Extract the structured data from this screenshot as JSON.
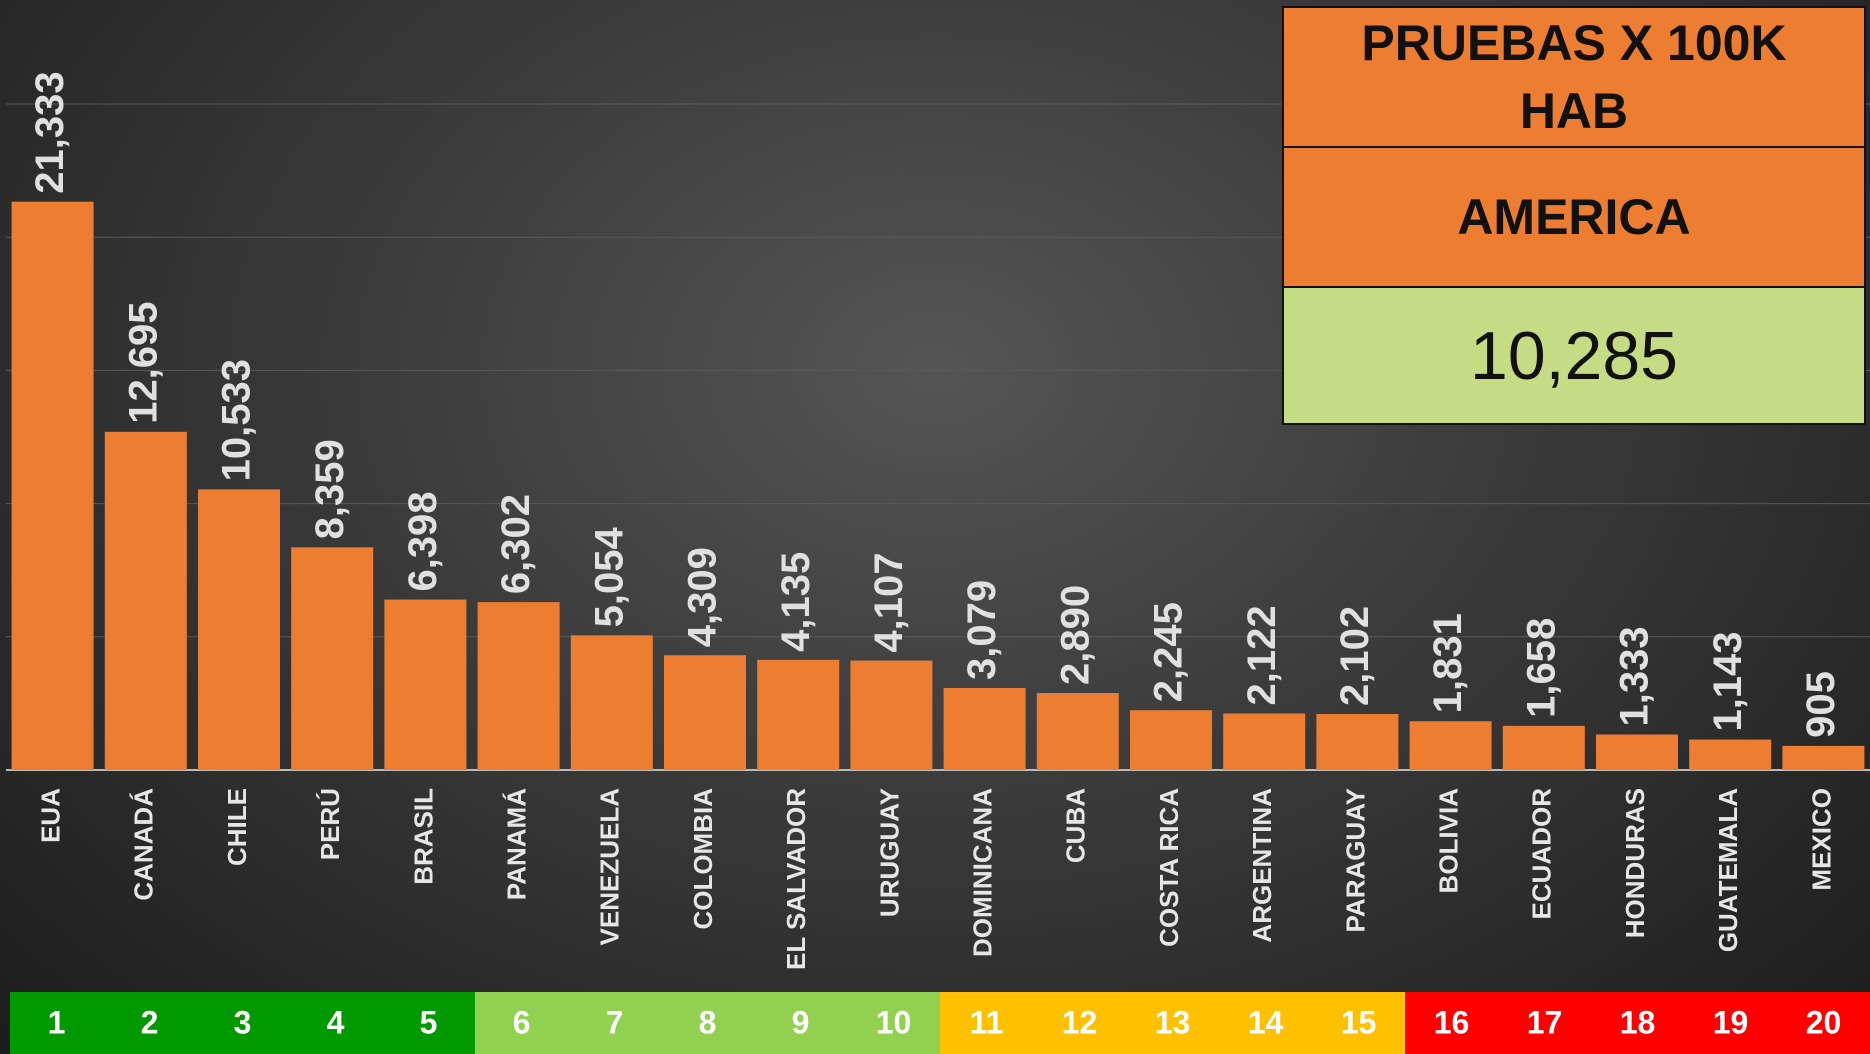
{
  "chart_data": {
    "type": "bar",
    "categories": [
      "EUA",
      "CANADÁ",
      "CHILE",
      "PERÚ",
      "BRASIL",
      "PANAMÁ",
      "VENEZUELA",
      "COLOMBIA",
      "EL SALVADOR",
      "URUGUAY",
      "DOMINICANA",
      "CUBA",
      "COSTA RICA",
      "ARGENTINA",
      "PARAGUAY",
      "BOLIVIA",
      "ECUADOR",
      "HONDURAS",
      "GUATEMALA",
      "MEXICO"
    ],
    "values": [
      21333,
      12695,
      10533,
      8359,
      6398,
      6302,
      5054,
      4309,
      4135,
      4107,
      3079,
      2890,
      2245,
      2122,
      2102,
      1831,
      1658,
      1333,
      1143,
      905
    ],
    "value_labels": [
      "21,333",
      "12,695",
      "10,533",
      "8,359",
      "6,398",
      "6,302",
      "5,054",
      "4,309",
      "4,135",
      "4,107",
      "3,079",
      "2,890",
      "2,245",
      "2,122",
      "2,102",
      "1,831",
      "1,658",
      "1,333",
      "1,143",
      "905"
    ],
    "color": "#ed7d31",
    "ylim": [
      0,
      25000
    ],
    "yticks": [
      0,
      5000,
      10000,
      15000,
      20000,
      25000
    ],
    "grid": true,
    "rank_groups": [
      {
        "color": "#009900",
        "ranks": [
          1,
          2,
          3,
          4,
          5
        ]
      },
      {
        "color": "#92d050",
        "ranks": [
          6,
          7,
          8,
          9,
          10
        ]
      },
      {
        "color": "#ffc000",
        "ranks": [
          11,
          12,
          13,
          14,
          15
        ]
      },
      {
        "color": "#ff0000",
        "ranks": [
          16,
          17,
          18,
          19,
          20
        ]
      }
    ],
    "summary": {
      "title": "PRUEBAS X 100K HAB",
      "region": "AMERICA",
      "value": "10,285"
    }
  }
}
